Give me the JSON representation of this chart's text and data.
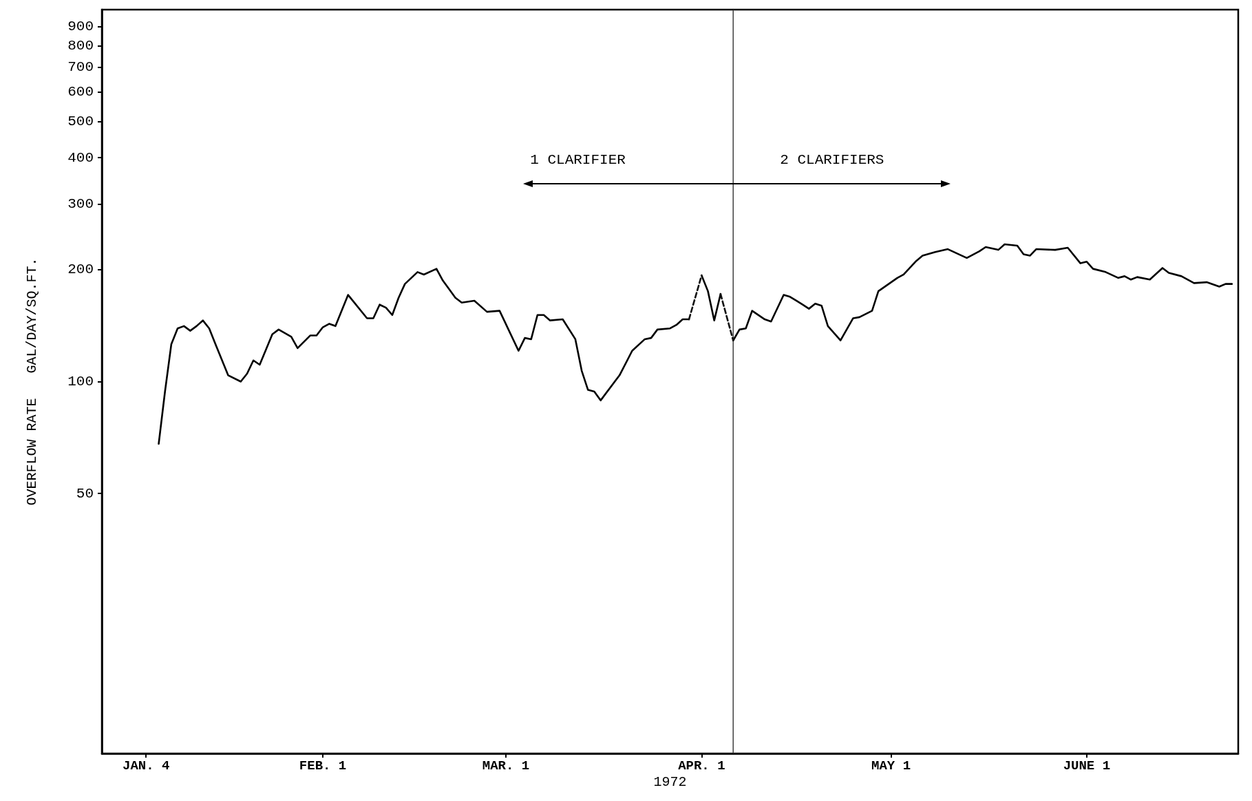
{
  "chart_data": {
    "type": "line",
    "xlabel": "1972",
    "ylabel": "OVERFLOW RATE   GAL/DAY/SQ.FT.",
    "xlim": [
      "1971-12-28",
      "1972-06-25"
    ],
    "xticks": [
      {
        "value": "1972-01-04",
        "label": "JAN. 4"
      },
      {
        "value": "1972-02-01",
        "label": "FEB. 1"
      },
      {
        "value": "1972-03-01",
        "label": "MAR. 1"
      },
      {
        "value": "1972-04-01",
        "label": "APR. 1"
      },
      {
        "value": "1972-05-01",
        "label": "MAY 1"
      },
      {
        "value": "1972-06-01",
        "label": "JUNE 1"
      }
    ],
    "ylim": [
      10,
      1000
    ],
    "yticks": [
      50,
      100,
      200,
      300,
      400,
      500,
      600,
      700,
      800,
      900
    ],
    "log": true,
    "annotations": [
      "1 CLARIFIER",
      "2 CLARIFIERS"
    ],
    "ref_lines": [
      {
        "axis": "x",
        "value": "1972-04-06",
        "color": "#333333"
      }
    ],
    "series": [
      {
        "color": "#000000",
        "line_style": "solid",
        "x": [
          "1972-01-06",
          "1972-01-07",
          "1972-01-08",
          "1972-01-09",
          "1972-01-10",
          "1972-01-11",
          "1972-01-12",
          "1972-01-13",
          "1972-01-14",
          "1972-01-15",
          "1972-01-17",
          "1972-01-19",
          "1972-01-20",
          "1972-01-21",
          "1972-01-22",
          "1972-01-24",
          "1972-01-25",
          "1972-01-27",
          "1972-01-28",
          "1972-01-30",
          "1972-01-31",
          "1972-02-01",
          "1972-02-02",
          "1972-02-03",
          "1972-02-05",
          "1972-02-08",
          "1972-02-09",
          "1972-02-10",
          "1972-02-11",
          "1972-02-12",
          "1972-02-13",
          "1972-02-14",
          "1972-02-16",
          "1972-02-17",
          "1972-02-19",
          "1972-02-20",
          "1972-02-22",
          "1972-02-23",
          "1972-02-25",
          "1972-02-27",
          "1972-02-29",
          "1972-03-03",
          "1972-03-04",
          "1972-03-05",
          "1972-03-06",
          "1972-03-07",
          "1972-03-08",
          "1972-03-10",
          "1972-03-12",
          "1972-03-13",
          "1972-03-14",
          "1972-03-15",
          "1972-03-16",
          "1972-03-19",
          "1972-03-21",
          "1972-03-23",
          "1972-03-24",
          "1972-03-25",
          "1972-03-27",
          "1972-03-28",
          "1972-03-29",
          "1972-03-30",
          "1972-03-31",
          "1972-04-01",
          "1972-04-02",
          "1972-04-03",
          "1972-04-04",
          "1972-04-05",
          "1972-04-06",
          "1972-04-07",
          "1972-04-08",
          "1972-04-09",
          "1972-04-11",
          "1972-04-12",
          "1972-04-14",
          "1972-04-15",
          "1972-04-16",
          "1972-04-17",
          "1972-04-18",
          "1972-04-19",
          "1972-04-20",
          "1972-04-21",
          "1972-04-23",
          "1972-04-25",
          "1972-04-26",
          "1972-04-28",
          "1972-04-29",
          "1972-05-02",
          "1972-05-03",
          "1972-05-05",
          "1972-05-06",
          "1972-05-08",
          "1972-05-10",
          "1972-05-13",
          "1972-05-15",
          "1972-05-16",
          "1972-05-18",
          "1972-05-19",
          "1972-05-21",
          "1972-05-22",
          "1972-05-23",
          "1972-05-24",
          "1972-05-27",
          "1972-05-29",
          "1972-05-31",
          "1972-06-01",
          "1972-06-02",
          "1972-06-04",
          "1972-06-06",
          "1972-06-07",
          "1972-06-08",
          "1972-06-09",
          "1972-06-11",
          "1972-06-13",
          "1972-06-14",
          "1972-06-16",
          "1972-06-18",
          "1972-06-20",
          "1972-06-22",
          "1972-06-23",
          "1972-06-24"
        ],
        "values": [
          68,
          94,
          126,
          139,
          141,
          137,
          141,
          146,
          139,
          126,
          104,
          100,
          105,
          114,
          111,
          134,
          138,
          132,
          123,
          133,
          133,
          140,
          143,
          141,
          171,
          148,
          148,
          161,
          158,
          151,
          168,
          183,
          197,
          194,
          201,
          187,
          168,
          163,
          165,
          154,
          155,
          121,
          131,
          130,
          151,
          151,
          146,
          147,
          130,
          107,
          95,
          94,
          89,
          104,
          121,
          130,
          131,
          138,
          139,
          142,
          147,
          147,
          null,
          193,
          175,
          146,
          172,
          null,
          129,
          138,
          139,
          155,
          147,
          145,
          171,
          169,
          165,
          161,
          157,
          162,
          160,
          141,
          129,
          148,
          149,
          155,
          175,
          190,
          194,
          211,
          218,
          223,
          227,
          215,
          224,
          230,
          226,
          234,
          232,
          220,
          218,
          227,
          226,
          229,
          208,
          210,
          201,
          197,
          190,
          192,
          188,
          191,
          188,
          202,
          196,
          192,
          184,
          185,
          180,
          183,
          183
        ]
      },
      {
        "color": "#111111",
        "line_style": "dashed",
        "x": [
          "1972-03-30",
          "1972-04-01",
          "1972-04-02",
          "1972-04-04",
          "1972-04-06"
        ],
        "values": [
          147,
          193,
          null,
          172,
          129
        ]
      }
    ]
  }
}
